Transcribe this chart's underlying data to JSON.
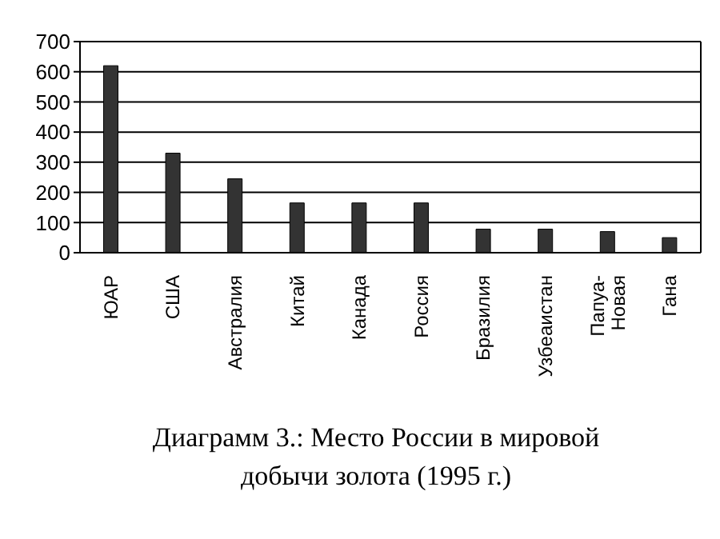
{
  "chart_data": {
    "type": "bar",
    "title": "Диаграмм 3.: Место России в мировой добычи золота (1995 г.)",
    "categories": [
      "ЮАР",
      "США",
      "Австралия",
      "Китай",
      "Канада",
      "Россия",
      "Бразилия",
      "Узбеаистан",
      "Папуа-Новая",
      "Гана"
    ],
    "values": [
      620,
      330,
      245,
      165,
      165,
      165,
      78,
      78,
      70,
      50
    ],
    "color": "#333333",
    "ylim": [
      0,
      700
    ],
    "yticks": [
      0,
      100,
      200,
      300,
      400,
      500,
      600,
      700
    ],
    "grid": "y"
  }
}
